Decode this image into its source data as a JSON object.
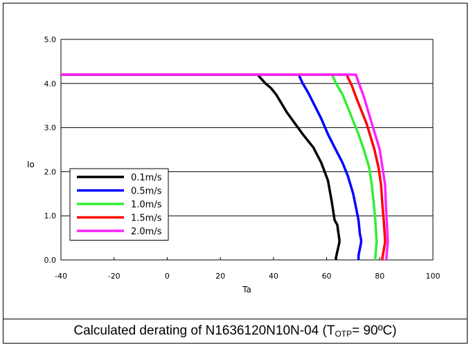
{
  "chart_data": {
    "type": "line",
    "xlabel": "Ta",
    "ylabel": "Io",
    "xlim": [
      -40,
      100
    ],
    "ylim": [
      0,
      5
    ],
    "xticks": [
      "-40",
      "-20",
      "0",
      "20",
      "40",
      "60",
      "80",
      "100"
    ],
    "yticks": [
      "0.0",
      "1.0",
      "2.0",
      "3.0",
      "4.0",
      "5.0"
    ],
    "grid": "horizontal",
    "legend": "bottom-left",
    "series": [
      {
        "name": "0.1m/s",
        "color": "#000000",
        "points": [
          [
            -40,
            4.2
          ],
          [
            34,
            4.2
          ],
          [
            35.5,
            4.1
          ],
          [
            37,
            4.0
          ],
          [
            39,
            3.9
          ],
          [
            41,
            3.75
          ],
          [
            43,
            3.55
          ],
          [
            45,
            3.35
          ],
          [
            48,
            3.1
          ],
          [
            51,
            2.85
          ],
          [
            55,
            2.55
          ],
          [
            58,
            2.2
          ],
          [
            60.5,
            1.8
          ],
          [
            62,
            1.3
          ],
          [
            63,
            0.9
          ],
          [
            64,
            0.8
          ],
          [
            64.8,
            0.45
          ],
          [
            64.8,
            0.4
          ],
          [
            63.5,
            0.05
          ],
          [
            63.5,
            0
          ]
        ]
      },
      {
        "name": "0.5m/s",
        "color": "#0000ff",
        "points": [
          [
            -40,
            4.2
          ],
          [
            49.5,
            4.2
          ],
          [
            51,
            4.0
          ],
          [
            53,
            3.8
          ],
          [
            55.5,
            3.5
          ],
          [
            58,
            3.2
          ],
          [
            60.5,
            2.85
          ],
          [
            63,
            2.55
          ],
          [
            66,
            2.2
          ],
          [
            68,
            1.9
          ],
          [
            70,
            1.5
          ],
          [
            71,
            1.2
          ],
          [
            72,
            0.9
          ],
          [
            72.5,
            0.6
          ],
          [
            73,
            0.45
          ],
          [
            73,
            0.4
          ],
          [
            72,
            0.1
          ],
          [
            72,
            0
          ]
        ]
      },
      {
        "name": "1.0m/s",
        "color": "#33ee33",
        "points": [
          [
            -40,
            4.2
          ],
          [
            62,
            4.2
          ],
          [
            64,
            3.95
          ],
          [
            66,
            3.75
          ],
          [
            68,
            3.45
          ],
          [
            70,
            3.15
          ],
          [
            72,
            2.85
          ],
          [
            74,
            2.5
          ],
          [
            76,
            2.1
          ],
          [
            77,
            1.7
          ],
          [
            77.8,
            1.25
          ],
          [
            78.3,
            0.9
          ],
          [
            78.8,
            0.45
          ],
          [
            78.8,
            0.4
          ],
          [
            78.3,
            0.05
          ],
          [
            78.3,
            0
          ]
        ]
      },
      {
        "name": "1.5m/s",
        "color": "#ff0000",
        "points": [
          [
            -40,
            4.2
          ],
          [
            67.5,
            4.2
          ],
          [
            69.5,
            3.95
          ],
          [
            71,
            3.7
          ],
          [
            73,
            3.4
          ],
          [
            75,
            3.1
          ],
          [
            76.5,
            2.8
          ],
          [
            78,
            2.5
          ],
          [
            79.5,
            2.1
          ],
          [
            80.5,
            1.7
          ],
          [
            81,
            1.25
          ],
          [
            81.5,
            0.9
          ],
          [
            82,
            0.45
          ],
          [
            82,
            0.4
          ],
          [
            81,
            0.05
          ],
          [
            81,
            0
          ]
        ]
      },
      {
        "name": "2.0m/s",
        "color": "#ff22ff",
        "points": [
          [
            -40,
            4.2
          ],
          [
            71,
            4.2
          ],
          [
            72.5,
            3.95
          ],
          [
            74,
            3.7
          ],
          [
            75.5,
            3.4
          ],
          [
            77,
            3.1
          ],
          [
            78.5,
            2.8
          ],
          [
            80,
            2.5
          ],
          [
            81,
            2.1
          ],
          [
            82,
            1.7
          ],
          [
            82.3,
            1.25
          ],
          [
            82.6,
            0.9
          ],
          [
            83,
            0.45
          ],
          [
            83,
            0.4
          ],
          [
            82.5,
            0.05
          ],
          [
            82.5,
            0
          ]
        ]
      }
    ]
  },
  "caption": {
    "prefix": "Calculated derating of N1636120N10N-04 (T",
    "sub": "OTP",
    "suffix": "= 90ºC)"
  }
}
